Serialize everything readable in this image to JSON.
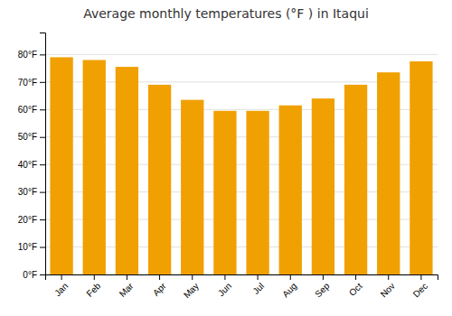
{
  "chart_data": {
    "type": "bar",
    "title": "Average monthly temperatures (°F ) in Itaqui",
    "categories": [
      "Jan",
      "Feb",
      "Mar",
      "Apr",
      "May",
      "Jun",
      "Jul",
      "Aug",
      "Sep",
      "Oct",
      "Nov",
      "Dec"
    ],
    "values": [
      79,
      78,
      75.5,
      69,
      63.5,
      59.5,
      59.5,
      61.5,
      64,
      69,
      73.5,
      77.5
    ],
    "color": "#F0A000",
    "ylim": [
      0,
      88
    ],
    "yticks": [
      {
        "value": 0,
        "label": "0°F"
      },
      {
        "value": 10,
        "label": "10°F"
      },
      {
        "value": 20,
        "label": "20°F"
      },
      {
        "value": 30,
        "label": "30°F"
      },
      {
        "value": 40,
        "label": "40°F"
      },
      {
        "value": 50,
        "label": "50°F"
      },
      {
        "value": 60,
        "label": "60°F"
      },
      {
        "value": 70,
        "label": "70°F"
      },
      {
        "value": 80,
        "label": "80°F"
      }
    ],
    "grid": true
  }
}
